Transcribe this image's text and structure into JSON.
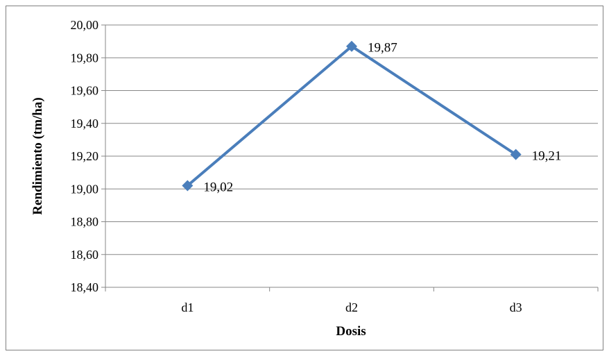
{
  "chart_data": {
    "type": "line",
    "title": "",
    "xlabel": "Dosis",
    "ylabel": "Rendimiento (tm/ha)",
    "categories": [
      "d1",
      "d2",
      "d3"
    ],
    "series": [
      {
        "values": [
          19.02,
          19.87,
          19.21
        ],
        "data_labels": [
          "19,02",
          "19,87",
          "19,21"
        ],
        "color": "#4a7ebb",
        "marker": "diamond"
      }
    ],
    "ylim": [
      18.4,
      20.0
    ],
    "y_ticks": [
      20.0,
      19.8,
      19.6,
      19.4,
      19.2,
      19.0,
      18.8,
      18.6,
      18.4
    ],
    "y_tick_labels": [
      "20,00",
      "19,80",
      "19,60",
      "19,40",
      "19,20",
      "19,00",
      "18,80",
      "18,60",
      "18,40"
    ],
    "grid": "horizontal",
    "legend": "none"
  }
}
